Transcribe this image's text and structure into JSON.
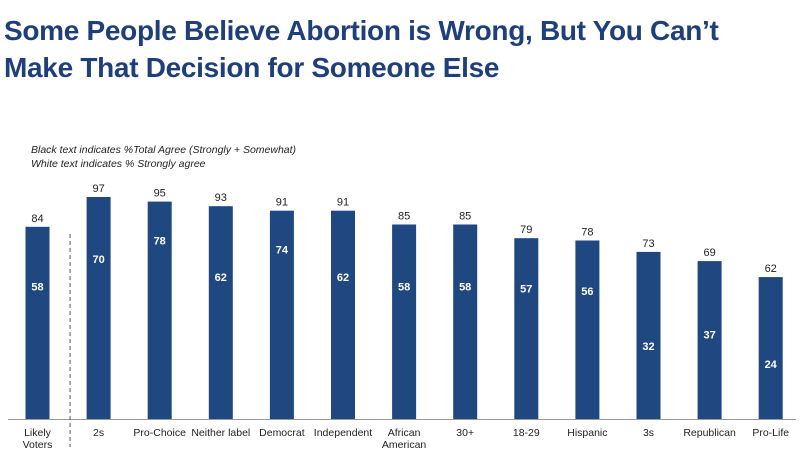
{
  "slide": {
    "title": "Some People Believe Abortion is Wrong, But You Can’t Make That Decision for Someone Else"
  },
  "legend": {
    "line1": "Black text indicates  %Total Agree (Strongly + Somewhat)",
    "line2": "White text indicates % Strongly agree"
  },
  "chart_data": {
    "type": "bar",
    "title": "Some People Believe Abortion is Wrong, But You Can’t Make That Decision for Someone Else",
    "categories": [
      [
        "Likely",
        "Voters"
      ],
      [
        "2s"
      ],
      [
        "Pro-Choice"
      ],
      [
        "Neither label"
      ],
      [
        "Democrat"
      ],
      [
        "Independent"
      ],
      [
        "African",
        "American"
      ],
      [
        "30+"
      ],
      [
        "18-29"
      ],
      [
        "Hispanic"
      ],
      [
        "3s"
      ],
      [
        "Republican"
      ],
      [
        "Pro-Life"
      ]
    ],
    "series": [
      {
        "name": "% Total Agree (Strongly + Somewhat)",
        "values": [
          84,
          97,
          95,
          93,
          91,
          91,
          85,
          85,
          79,
          78,
          73,
          69,
          62
        ]
      },
      {
        "name": "% Strongly agree",
        "values": [
          58,
          70,
          78,
          62,
          74,
          62,
          58,
          58,
          57,
          56,
          32,
          37,
          24
        ]
      }
    ],
    "ylim": [
      0,
      100
    ],
    "grid": false,
    "bar_color": "#1f4780",
    "separator_after_index": 0
  }
}
